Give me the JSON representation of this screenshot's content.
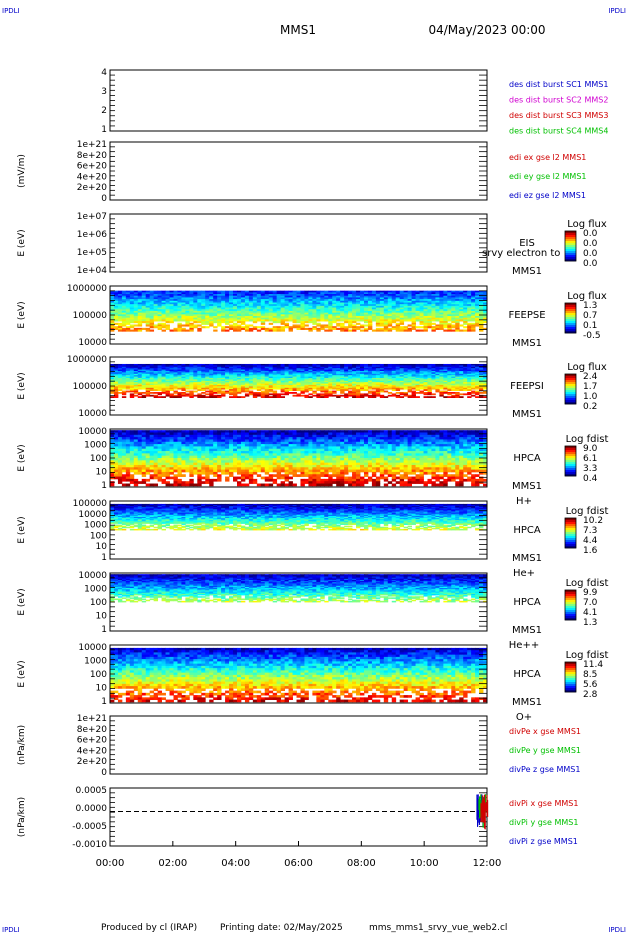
{
  "corner_label": "IPDLI",
  "header": {
    "spacecraft": "MMS1",
    "date": "04/May/2023 00:00"
  },
  "footer": {
    "produced_by": "Produced by cl (IRAP)",
    "printing_date": "Printing date: 02/May/2025",
    "file": "mms_mms1_srvy_vue_web2.cl"
  },
  "overflow_text": "srvy electron to",
  "chart_data": [
    {
      "type": "line",
      "ylabel": "",
      "yticks": [
        "4",
        "3",
        "2",
        "1"
      ],
      "ylim": [
        0.5,
        4.5
      ],
      "legend": [
        {
          "label": "des dist burst SC1 MMS1",
          "color": "#0000c8"
        },
        {
          "label": "des dist burst SC2 MMS2",
          "color": "#d000d0"
        },
        {
          "label": "des dist burst SC3 MMS3",
          "color": "#d00000"
        },
        {
          "label": "des dist burst SC4 MMS4",
          "color": "#00c000"
        }
      ]
    },
    {
      "type": "line",
      "ylabel": "(mV/m)",
      "yticks": [
        "1e+21",
        "8e+20",
        "6e+20",
        "4e+20",
        "2e+20",
        "0"
      ],
      "ylim": [
        0,
        1e+21
      ],
      "legend": [
        {
          "label": "edi ex gse l2 MMS1",
          "color": "#d00000"
        },
        {
          "label": "edi ey gse l2 MMS1",
          "color": "#00c000"
        },
        {
          "label": "edi ez gse l2 MMS1",
          "color": "#0000c8"
        }
      ]
    },
    {
      "type": "heatmap",
      "ylabel": "E (eV)",
      "yticks": [
        "1e+07",
        "1e+06",
        "1e+05",
        "1e+04"
      ],
      "instrument": "EIS",
      "spacecraft": "MMS1",
      "cbar_title": "Log flux",
      "cbar_ticks": [
        "0.0",
        "0.0",
        "0.0",
        "0.0"
      ],
      "fill": {
        "top": 0,
        "bot": 0,
        "intensity": [
          0,
          0
        ]
      }
    },
    {
      "type": "heatmap",
      "ylabel": "E (eV)",
      "yticks": [
        "1000000",
        "100000",
        "10000"
      ],
      "instrument": "FEEPSE",
      "spacecraft": "MMS1",
      "cbar_title": "Log flux",
      "cbar_ticks": [
        "1.3",
        "0.7",
        "0.1",
        "-0.5"
      ],
      "fill": {
        "top": 0.08,
        "bot": 0.78,
        "intensity": [
          0.15,
          0.75
        ]
      }
    },
    {
      "type": "heatmap",
      "ylabel": "E (eV)",
      "yticks": [
        "1000000",
        "100000",
        "10000"
      ],
      "instrument": "FEEPSI",
      "spacecraft": "MMS1",
      "cbar_title": "Log flux",
      "cbar_ticks": [
        "2.4",
        "1.7",
        "1.0",
        "0.2"
      ],
      "fill": {
        "top": 0.12,
        "bot": 0.7,
        "intensity": [
          0.05,
          0.92
        ]
      }
    },
    {
      "type": "heatmap",
      "ylabel": "E (eV)",
      "yticks": [
        "10000",
        "1000",
        "100",
        "10",
        "1"
      ],
      "instrument": "HPCA",
      "spacecraft": "MMS1",
      "species": "H+",
      "cbar_title": "Log fdist",
      "cbar_ticks": [
        "9.0",
        "6.1",
        "3.3",
        "0.4"
      ],
      "fill": {
        "top": 0.02,
        "bot": 0.98,
        "intensity": [
          0.05,
          0.95
        ]
      }
    },
    {
      "type": "heatmap",
      "ylabel": "E (eV)",
      "yticks": [
        "100000",
        "10000",
        "1000",
        "100",
        "10",
        "1"
      ],
      "instrument": "HPCA",
      "spacecraft": "MMS1",
      "species": "He+",
      "cbar_title": "Log fdist",
      "cbar_ticks": [
        "10.2",
        "7.3",
        "4.4",
        "1.6"
      ],
      "fill": {
        "top": 0.05,
        "bot": 0.5,
        "intensity": [
          0.05,
          0.6
        ]
      }
    },
    {
      "type": "heatmap",
      "ylabel": "E (eV)",
      "yticks": [
        "10000",
        "1000",
        "100",
        "10",
        "1"
      ],
      "instrument": "HPCA",
      "spacecraft": "MMS1",
      "species": "He++",
      "cbar_title": "Log fdist",
      "cbar_ticks": [
        "9.9",
        "7.0",
        "4.1",
        "1.3"
      ],
      "fill": {
        "top": 0.02,
        "bot": 0.5,
        "intensity": [
          0.05,
          0.55
        ]
      }
    },
    {
      "type": "heatmap",
      "ylabel": "E (eV)",
      "yticks": [
        "10000",
        "1000",
        "100",
        "10",
        "1"
      ],
      "instrument": "HPCA",
      "spacecraft": "MMS1",
      "species": "O+",
      "cbar_title": "Log fdist",
      "cbar_ticks": [
        "11.4",
        "8.5",
        "5.6",
        "2.8"
      ],
      "fill": {
        "top": 0.05,
        "bot": 0.98,
        "intensity": [
          0.08,
          0.9
        ]
      }
    },
    {
      "type": "line",
      "ylabel": "(nPa/km)",
      "yticks": [
        "1e+21",
        "8e+20",
        "6e+20",
        "4e+20",
        "2e+20",
        "0"
      ],
      "ylim": [
        0,
        1e+21
      ],
      "legend": [
        {
          "label": "divPe x gse MMS1",
          "color": "#d00000"
        },
        {
          "label": "divPe y gse MMS1",
          "color": "#00c000"
        },
        {
          "label": "divPe z gse MMS1",
          "color": "#0000c8"
        }
      ]
    },
    {
      "type": "line",
      "ylabel": "(nPa/km)",
      "yticks": [
        "0.0005",
        "0.0000",
        "-0.0005",
        "-0.0010"
      ],
      "ylim": [
        -0.00125,
        0.00085
      ],
      "legend": [
        {
          "label": "divPi x gse MMS1",
          "color": "#d00000"
        },
        {
          "label": "divPi y gse MMS1",
          "color": "#00c000"
        },
        {
          "label": "divPi z gse MMS1",
          "color": "#0000c8"
        }
      ]
    }
  ],
  "xaxis": {
    "ticks": [
      "00:00",
      "02:00",
      "04:00",
      "06:00",
      "08:00",
      "10:00",
      "12:00"
    ]
  }
}
